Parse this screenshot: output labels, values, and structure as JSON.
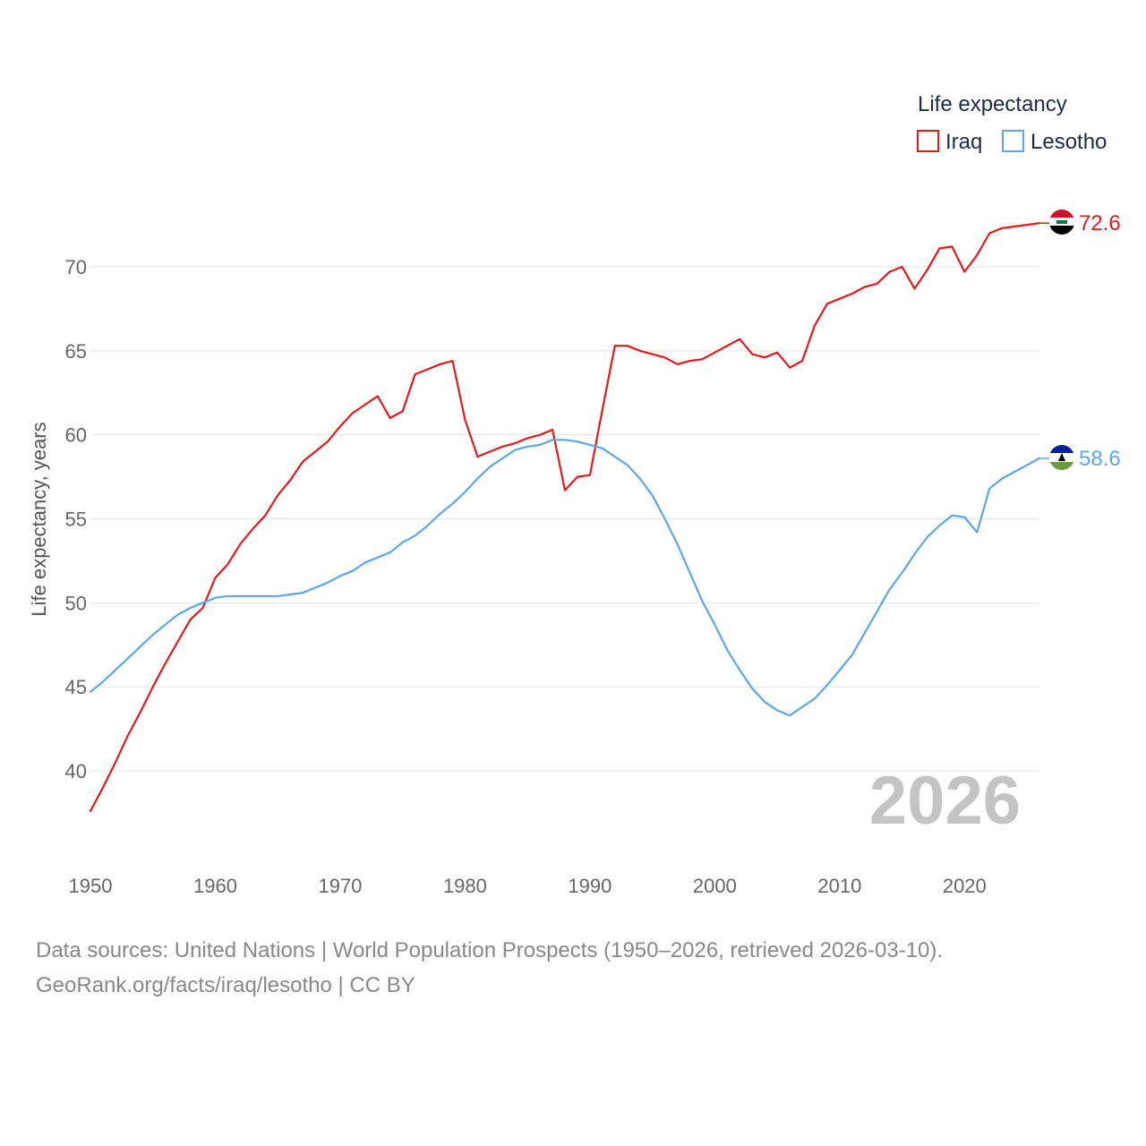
{
  "chart_data": {
    "type": "line",
    "title": "",
    "xlabel": "",
    "ylabel": "Life expectancy, years",
    "xlim": [
      1950,
      2026
    ],
    "ylim": [
      35,
      73
    ],
    "yticks": [
      40,
      45,
      50,
      55,
      60,
      65,
      70
    ],
    "xticks": [
      1950,
      1960,
      1970,
      1980,
      1990,
      2000,
      2010,
      2020
    ],
    "legend_title": "Life expectancy",
    "legend_position": "top-right",
    "current_year_label": "2026",
    "x": [
      1950,
      1951,
      1952,
      1953,
      1954,
      1955,
      1956,
      1957,
      1958,
      1959,
      1960,
      1961,
      1962,
      1963,
      1964,
      1965,
      1966,
      1967,
      1968,
      1969,
      1970,
      1971,
      1972,
      1973,
      1974,
      1975,
      1976,
      1977,
      1978,
      1979,
      1980,
      1981,
      1982,
      1983,
      1984,
      1985,
      1986,
      1987,
      1988,
      1989,
      1990,
      1991,
      1992,
      1993,
      1994,
      1995,
      1996,
      1997,
      1998,
      1999,
      2000,
      2001,
      2002,
      2003,
      2004,
      2005,
      2006,
      2007,
      2008,
      2009,
      2010,
      2011,
      2012,
      2013,
      2014,
      2015,
      2016,
      2017,
      2018,
      2019,
      2020,
      2021,
      2022,
      2023,
      2024,
      2025,
      2026
    ],
    "series": [
      {
        "name": "Iraq",
        "color": "#e31a1c",
        "end_label": "72.6",
        "values": [
          37.6,
          39.0,
          40.5,
          42.1,
          43.5,
          45.0,
          46.4,
          47.7,
          49.0,
          49.7,
          51.5,
          52.3,
          53.5,
          54.4,
          55.2,
          56.4,
          57.3,
          58.4,
          59.0,
          59.6,
          60.5,
          61.3,
          61.8,
          62.3,
          61.0,
          61.4,
          63.6,
          63.9,
          64.2,
          64.4,
          60.9,
          58.7,
          59.0,
          59.3,
          59.5,
          59.8,
          60.0,
          60.3,
          56.7,
          57.5,
          57.6,
          61.5,
          65.3,
          65.3,
          65.0,
          64.8,
          64.6,
          64.2,
          64.4,
          64.5,
          64.9,
          65.3,
          65.7,
          64.8,
          64.6,
          64.9,
          64.0,
          64.4,
          66.5,
          67.8,
          68.1,
          68.4,
          68.8,
          69.0,
          69.7,
          70.0,
          68.7,
          69.8,
          71.1,
          71.2,
          69.7,
          70.7,
          72.0,
          72.3,
          72.4,
          72.5,
          72.6
        ]
      },
      {
        "name": "Lesotho",
        "color": "#5ea6e6",
        "end_label": "58.6",
        "values": [
          44.7,
          45.3,
          46.0,
          46.7,
          47.4,
          48.1,
          48.7,
          49.3,
          49.7,
          50.0,
          50.3,
          50.4,
          50.4,
          50.4,
          50.4,
          50.4,
          50.5,
          50.6,
          50.9,
          51.2,
          51.6,
          51.9,
          52.4,
          52.7,
          53.0,
          53.6,
          54.0,
          54.6,
          55.3,
          55.9,
          56.6,
          57.4,
          58.1,
          58.6,
          59.1,
          59.3,
          59.4,
          59.7,
          59.7,
          59.6,
          59.4,
          59.2,
          58.7,
          58.2,
          57.4,
          56.4,
          55.0,
          53.5,
          51.8,
          50.1,
          48.7,
          47.2,
          46.0,
          44.9,
          44.1,
          43.6,
          43.3,
          43.8,
          44.3,
          45.1,
          46.0,
          46.9,
          48.2,
          49.5,
          50.8,
          51.8,
          52.9,
          53.9,
          54.6,
          55.2,
          55.1,
          54.2,
          56.8,
          57.4,
          57.8,
          58.2,
          58.6
        ]
      }
    ]
  },
  "source": {
    "line1": "Data sources: United Nations | World Population Prospects (1950–2026, retrieved 2026-03-10).",
    "line2": "GeoRank.org/facts/iraq/lesotho | CC BY"
  }
}
